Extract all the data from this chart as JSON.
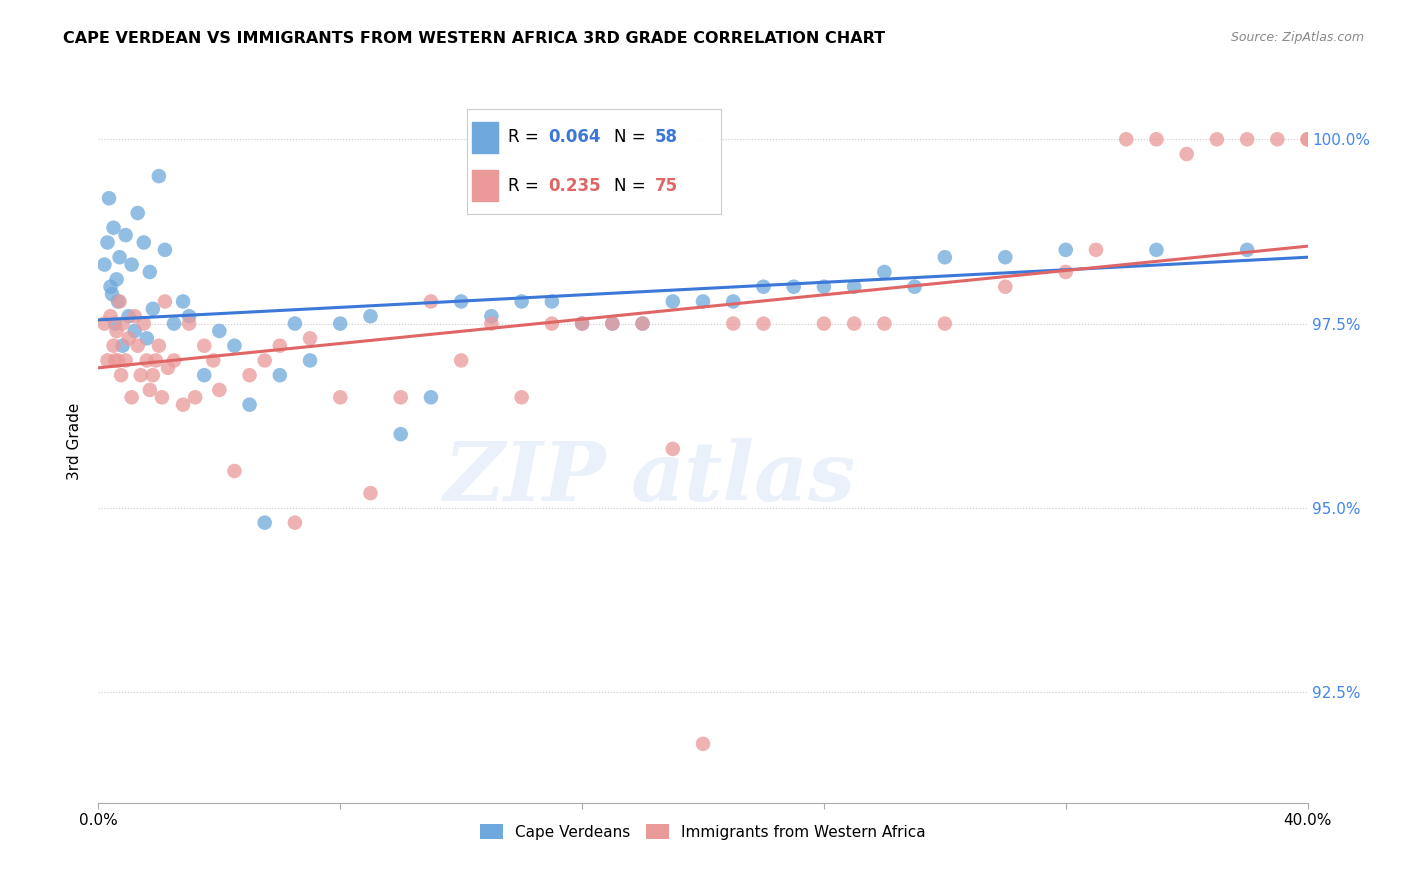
{
  "title": "CAPE VERDEAN VS IMMIGRANTS FROM WESTERN AFRICA 3RD GRADE CORRELATION CHART",
  "source": "Source: ZipAtlas.com",
  "ylabel": "3rd Grade",
  "xmin": 0.0,
  "xmax": 40.0,
  "ymin": 91.0,
  "ymax": 100.8,
  "yticks": [
    92.5,
    95.0,
    97.5,
    100.0
  ],
  "ytick_labels": [
    "92.5%",
    "95.0%",
    "97.5%",
    "100.0%"
  ],
  "xtick_positions": [
    0,
    8,
    16,
    24,
    32,
    40
  ],
  "blue_color": "#6fa8dc",
  "pink_color": "#ea9999",
  "blue_line_color": "#3c78d8",
  "pink_line_color": "#e06666",
  "blue_R": 0.064,
  "blue_N": 58,
  "pink_R": 0.235,
  "pink_N": 75,
  "legend_label_blue": "Cape Verdeans",
  "legend_label_pink": "Immigrants from Western Africa",
  "blue_line_x0": 0.0,
  "blue_line_x1": 40.0,
  "blue_line_y0": 97.55,
  "blue_line_y1": 98.4,
  "pink_line_x0": 0.0,
  "pink_line_x1": 40.0,
  "pink_line_y0": 96.9,
  "pink_line_y1": 98.55,
  "blue_scatter_x": [
    0.2,
    0.3,
    0.35,
    0.4,
    0.45,
    0.5,
    0.55,
    0.6,
    0.65,
    0.7,
    0.8,
    0.9,
    1.0,
    1.1,
    1.2,
    1.3,
    1.5,
    1.6,
    1.7,
    1.8,
    2.0,
    2.2,
    2.5,
    2.8,
    3.0,
    3.5,
    4.0,
    4.5,
    5.0,
    5.5,
    6.0,
    6.5,
    7.0,
    8.0,
    9.0,
    10.0,
    11.0,
    12.0,
    13.0,
    14.0,
    15.0,
    16.0,
    17.0,
    18.0,
    19.0,
    20.0,
    21.0,
    22.0,
    23.0,
    24.0,
    25.0,
    26.0,
    27.0,
    28.0,
    30.0,
    32.0,
    35.0,
    38.0
  ],
  "blue_scatter_y": [
    98.3,
    98.6,
    99.2,
    98.0,
    97.9,
    98.8,
    97.5,
    98.1,
    97.8,
    98.4,
    97.2,
    98.7,
    97.6,
    98.3,
    97.4,
    99.0,
    98.6,
    97.3,
    98.2,
    97.7,
    99.5,
    98.5,
    97.5,
    97.8,
    97.6,
    96.8,
    97.4,
    97.2,
    96.4,
    94.8,
    96.8,
    97.5,
    97.0,
    97.5,
    97.6,
    96.0,
    96.5,
    97.8,
    97.6,
    97.8,
    97.8,
    97.5,
    97.5,
    97.5,
    97.8,
    97.8,
    97.8,
    98.0,
    98.0,
    98.0,
    98.0,
    98.2,
    98.0,
    98.4,
    98.4,
    98.5,
    98.5,
    98.5
  ],
  "pink_scatter_x": [
    0.2,
    0.3,
    0.4,
    0.5,
    0.55,
    0.6,
    0.65,
    0.7,
    0.75,
    0.8,
    0.9,
    1.0,
    1.1,
    1.2,
    1.3,
    1.4,
    1.5,
    1.6,
    1.7,
    1.8,
    1.9,
    2.0,
    2.1,
    2.2,
    2.3,
    2.5,
    2.8,
    3.0,
    3.2,
    3.5,
    3.8,
    4.0,
    4.5,
    5.0,
    5.5,
    6.0,
    6.5,
    7.0,
    8.0,
    9.0,
    10.0,
    11.0,
    12.0,
    13.0,
    14.0,
    15.0,
    16.0,
    17.0,
    18.0,
    19.0,
    20.0,
    21.0,
    22.0,
    24.0,
    25.0,
    26.0,
    28.0,
    30.0,
    32.0,
    33.0,
    34.0,
    35.0,
    36.0,
    37.0,
    38.0,
    39.0,
    40.0,
    40.0,
    40.5,
    40.8,
    41.0,
    41.2,
    41.5,
    41.8,
    42.0
  ],
  "pink_scatter_y": [
    97.5,
    97.0,
    97.6,
    97.2,
    97.0,
    97.4,
    97.0,
    97.8,
    96.8,
    97.5,
    97.0,
    97.3,
    96.5,
    97.6,
    97.2,
    96.8,
    97.5,
    97.0,
    96.6,
    96.8,
    97.0,
    97.2,
    96.5,
    97.8,
    96.9,
    97.0,
    96.4,
    97.5,
    96.5,
    97.2,
    97.0,
    96.6,
    95.5,
    96.8,
    97.0,
    97.2,
    94.8,
    97.3,
    96.5,
    95.2,
    96.5,
    97.8,
    97.0,
    97.5,
    96.5,
    97.5,
    97.5,
    97.5,
    97.5,
    95.8,
    91.8,
    97.5,
    97.5,
    97.5,
    97.5,
    97.5,
    97.5,
    98.0,
    98.2,
    98.5,
    100.0,
    100.0,
    99.8,
    100.0,
    100.0,
    100.0,
    100.0,
    100.0,
    100.0,
    100.0,
    100.0,
    100.0,
    100.0,
    100.0,
    100.0
  ]
}
